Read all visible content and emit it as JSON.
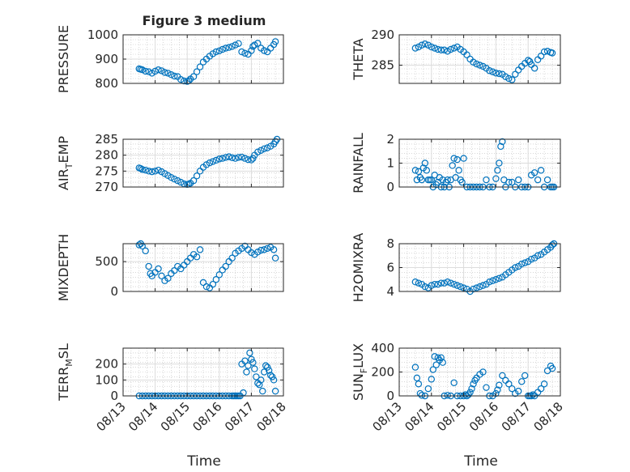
{
  "figure": {
    "title": "Figure 3 medium",
    "xlabel": "Time"
  },
  "style": {
    "marker_color": "#0072BD",
    "axis_color": "#262626",
    "grid_color": "#bfbfbf"
  },
  "chart_data": [
    {
      "type": "scatter",
      "name": "pressure",
      "ylabel": "PRESSURE",
      "xlim": [
        0,
        5
      ],
      "ylim": [
        800,
        1000
      ],
      "xticks": [
        0,
        1,
        2,
        3,
        4,
        5
      ],
      "yticks": [
        800,
        900,
        1000
      ],
      "ytick_labels": [
        "800",
        "900",
        "1000"
      ],
      "xtick_labels": [
        "08/13",
        "08/14",
        "08/15",
        "08/16",
        "08/17",
        "08/18"
      ],
      "x": [
        0.5,
        0.55,
        0.6,
        0.7,
        0.8,
        0.9,
        1.0,
        1.1,
        1.2,
        1.3,
        1.4,
        1.5,
        1.6,
        1.7,
        1.8,
        1.9,
        2.0,
        2.05,
        2.1,
        2.2,
        2.3,
        2.4,
        2.5,
        2.6,
        2.7,
        2.8,
        2.9,
        3.0,
        3.1,
        3.2,
        3.3,
        3.4,
        3.5,
        3.6,
        3.7,
        3.8,
        3.9,
        4.0,
        4.05,
        4.1,
        4.2,
        4.3,
        4.4,
        4.5,
        4.6,
        4.7,
        4.75
      ],
      "y": [
        860,
        858,
        856,
        850,
        848,
        842,
        850,
        856,
        852,
        845,
        842,
        836,
        830,
        828,
        816,
        810,
        808,
        811,
        818,
        828,
        848,
        868,
        888,
        900,
        912,
        922,
        930,
        934,
        940,
        945,
        948,
        952,
        958,
        964,
        930,
        924,
        920,
        935,
        952,
        958,
        965,
        945,
        935,
        930,
        945,
        960,
        972
      ]
    },
    {
      "type": "scatter",
      "name": "theta",
      "ylabel": "THETA",
      "xlim": [
        0,
        5
      ],
      "ylim": [
        282,
        290
      ],
      "xticks": [
        0,
        1,
        2,
        3,
        4,
        5
      ],
      "yticks": [
        285,
        290
      ],
      "ytick_labels": [
        "285",
        "290"
      ],
      "xtick_labels": [
        "08/13",
        "08/14",
        "08/15",
        "08/16",
        "08/17",
        "08/18"
      ],
      "x": [
        0.5,
        0.6,
        0.7,
        0.8,
        0.9,
        1.0,
        1.1,
        1.2,
        1.3,
        1.4,
        1.5,
        1.6,
        1.7,
        1.8,
        1.9,
        2.0,
        2.1,
        2.2,
        2.3,
        2.4,
        2.5,
        2.6,
        2.7,
        2.8,
        2.9,
        3.0,
        3.1,
        3.2,
        3.3,
        3.4,
        3.5,
        3.6,
        3.7,
        3.8,
        3.9,
        4.0,
        4.05,
        4.1,
        4.2,
        4.3,
        4.4,
        4.5,
        4.6,
        4.7,
        4.75
      ],
      "y": [
        287.8,
        288.0,
        288.3,
        288.5,
        288.3,
        288.0,
        287.8,
        287.6,
        287.5,
        287.5,
        287.3,
        287.6,
        287.8,
        288.0,
        287.6,
        287.2,
        286.7,
        286.0,
        285.5,
        285.2,
        285.0,
        284.8,
        284.5,
        284.1,
        283.9,
        283.7,
        283.6,
        283.5,
        283.1,
        282.8,
        282.6,
        283.5,
        284.2,
        284.8,
        285.3,
        285.8,
        285.6,
        285.1,
        284.5,
        285.9,
        286.5,
        287.2,
        287.3,
        287.1,
        287.0
      ]
    },
    {
      "type": "scatter",
      "name": "air-temp",
      "ylabel": "AIR_TEMP",
      "xlim": [
        0,
        5
      ],
      "ylim": [
        270,
        285
      ],
      "xticks": [
        0,
        1,
        2,
        3,
        4,
        5
      ],
      "yticks": [
        270,
        275,
        280,
        285
      ],
      "ytick_labels": [
        "270",
        "275",
        "280",
        "285"
      ],
      "xtick_labels": [
        "08/13",
        "08/14",
        "08/15",
        "08/16",
        "08/17",
        "08/18"
      ],
      "x": [
        0.5,
        0.55,
        0.6,
        0.7,
        0.8,
        0.9,
        1.0,
        1.1,
        1.2,
        1.3,
        1.4,
        1.5,
        1.6,
        1.7,
        1.8,
        1.9,
        2.0,
        2.05,
        2.1,
        2.2,
        2.3,
        2.4,
        2.5,
        2.6,
        2.7,
        2.8,
        2.9,
        3.0,
        3.1,
        3.2,
        3.3,
        3.4,
        3.5,
        3.6,
        3.7,
        3.8,
        3.9,
        4.0,
        4.05,
        4.1,
        4.2,
        4.3,
        4.4,
        4.5,
        4.6,
        4.7,
        4.75,
        4.8
      ],
      "y": [
        276.0,
        275.8,
        275.5,
        275.3,
        275.0,
        274.8,
        275.0,
        275.3,
        274.8,
        274.2,
        273.6,
        273.0,
        272.5,
        272.0,
        271.5,
        271.0,
        270.8,
        270.9,
        271.2,
        272.0,
        273.5,
        275.0,
        276.2,
        277.0,
        277.6,
        278.0,
        278.4,
        278.8,
        279.0,
        279.3,
        279.5,
        279.2,
        279.0,
        279.3,
        279.4,
        279.0,
        278.6,
        278.5,
        279.0,
        280.0,
        281.0,
        281.5,
        282.0,
        282.3,
        282.8,
        283.5,
        284.3,
        285.0
      ]
    },
    {
      "type": "scatter",
      "name": "rainfall",
      "ylabel": "RAINFALL",
      "xlim": [
        0,
        5
      ],
      "ylim": [
        0,
        2
      ],
      "xticks": [
        0,
        1,
        2,
        3,
        4,
        5
      ],
      "yticks": [
        0,
        1,
        2
      ],
      "ytick_labels": [
        "0",
        "1",
        "2"
      ],
      "xtick_labels": [
        "08/13",
        "08/14",
        "08/15",
        "08/16",
        "08/17",
        "08/18"
      ],
      "x": [
        0.5,
        0.55,
        0.6,
        0.65,
        0.7,
        0.75,
        0.8,
        0.85,
        0.9,
        0.95,
        1.0,
        1.05,
        1.1,
        1.15,
        1.2,
        1.25,
        1.3,
        1.35,
        1.4,
        1.45,
        1.5,
        1.55,
        1.6,
        1.65,
        1.7,
        1.75,
        1.8,
        1.85,
        1.9,
        1.95,
        2.0,
        2.1,
        2.2,
        2.3,
        2.4,
        2.5,
        2.6,
        2.7,
        2.8,
        2.9,
        3.0,
        3.05,
        3.1,
        3.15,
        3.2,
        3.25,
        3.3,
        3.4,
        3.5,
        3.6,
        3.7,
        3.8,
        3.9,
        4.0,
        4.1,
        4.2,
        4.3,
        4.4,
        4.5,
        4.6,
        4.7,
        4.75,
        4.8
      ],
      "y": [
        0.7,
        0.3,
        0.65,
        0.4,
        0.3,
        0.8,
        1.0,
        0.7,
        0.3,
        0.3,
        0.3,
        0.0,
        0.5,
        0.1,
        0.2,
        0.4,
        0.0,
        0.3,
        0.0,
        0.2,
        0.3,
        0.0,
        0.3,
        0.9,
        1.2,
        0.4,
        1.15,
        0.7,
        0.3,
        0.2,
        1.2,
        0.0,
        0.0,
        0.0,
        0.0,
        0.0,
        0.0,
        0.3,
        0.0,
        0.0,
        0.35,
        0.7,
        1.0,
        1.7,
        1.9,
        0.3,
        0.0,
        0.2,
        0.2,
        0.0,
        0.3,
        0.0,
        0.0,
        0.0,
        0.5,
        0.6,
        0.3,
        0.7,
        0.0,
        0.3,
        0.0,
        0.0,
        0.0
      ]
    },
    {
      "type": "scatter",
      "name": "mixdepth",
      "ylabel": "MIXDEPTH",
      "xlim": [
        0,
        5
      ],
      "ylim": [
        0,
        800
      ],
      "xticks": [
        0,
        1,
        2,
        3,
        4,
        5
      ],
      "yticks": [
        0,
        500
      ],
      "ytick_labels": [
        "0",
        "500"
      ],
      "xtick_labels": [
        "08/13",
        "08/14",
        "08/15",
        "08/16",
        "08/17",
        "08/18"
      ],
      "x": [
        0.5,
        0.55,
        0.6,
        0.7,
        0.8,
        0.85,
        0.9,
        1.0,
        1.1,
        1.2,
        1.3,
        1.4,
        1.5,
        1.6,
        1.7,
        1.8,
        1.9,
        2.0,
        2.1,
        2.2,
        2.3,
        2.4,
        2.5,
        2.6,
        2.7,
        2.8,
        2.9,
        3.0,
        3.1,
        3.2,
        3.3,
        3.4,
        3.5,
        3.6,
        3.7,
        3.8,
        3.9,
        4.0,
        4.1,
        4.2,
        4.3,
        4.4,
        4.5,
        4.6,
        4.7,
        4.75
      ],
      "y": [
        780,
        800,
        760,
        680,
        420,
        300,
        260,
        320,
        380,
        260,
        180,
        220,
        300,
        350,
        420,
        380,
        440,
        500,
        560,
        620,
        580,
        700,
        150,
        80,
        60,
        120,
        200,
        280,
        360,
        420,
        500,
        560,
        640,
        680,
        720,
        760,
        700,
        650,
        620,
        660,
        690,
        700,
        720,
        740,
        700,
        560
      ]
    },
    {
      "type": "scatter",
      "name": "h2omixra",
      "ylabel": "H2OMIXRA",
      "xlim": [
        0,
        5
      ],
      "ylim": [
        4,
        8
      ],
      "xticks": [
        0,
        1,
        2,
        3,
        4,
        5
      ],
      "yticks": [
        4,
        6,
        8
      ],
      "ytick_labels": [
        "4",
        "6",
        "8"
      ],
      "xtick_labels": [
        "08/13",
        "08/14",
        "08/15",
        "08/16",
        "08/17",
        "08/18"
      ],
      "x": [
        0.5,
        0.6,
        0.7,
        0.8,
        0.9,
        1.0,
        1.1,
        1.2,
        1.3,
        1.4,
        1.5,
        1.6,
        1.7,
        1.8,
        1.9,
        2.0,
        2.1,
        2.2,
        2.3,
        2.4,
        2.5,
        2.6,
        2.7,
        2.8,
        2.9,
        3.0,
        3.1,
        3.2,
        3.3,
        3.4,
        3.5,
        3.6,
        3.7,
        3.8,
        3.9,
        4.0,
        4.1,
        4.2,
        4.3,
        4.4,
        4.5,
        4.6,
        4.7,
        4.75,
        4.8
      ],
      "y": [
        4.8,
        4.7,
        4.6,
        4.4,
        4.3,
        4.5,
        4.6,
        4.6,
        4.7,
        4.7,
        4.8,
        4.7,
        4.6,
        4.5,
        4.4,
        4.3,
        4.2,
        4.0,
        4.2,
        4.3,
        4.4,
        4.5,
        4.6,
        4.8,
        4.9,
        5.0,
        5.1,
        5.2,
        5.4,
        5.6,
        5.8,
        6.0,
        6.1,
        6.3,
        6.4,
        6.5,
        6.7,
        6.8,
        7.0,
        7.1,
        7.3,
        7.5,
        7.7,
        7.9,
        8.0
      ]
    },
    {
      "type": "scatter",
      "name": "terr-msl",
      "ylabel": "TERR_MSL",
      "xlim": [
        0,
        5
      ],
      "ylim": [
        0,
        300
      ],
      "xticks": [
        0,
        1,
        2,
        3,
        4,
        5
      ],
      "yticks": [
        0,
        100,
        200
      ],
      "ytick_labels": [
        "0",
        "100",
        "200"
      ],
      "xtick_labels": [
        "08/13",
        "08/14",
        "08/15",
        "08/16",
        "08/17",
        "08/18"
      ],
      "x": [
        0.5,
        0.6,
        0.7,
        0.8,
        0.9,
        1.0,
        1.1,
        1.2,
        1.3,
        1.4,
        1.5,
        1.6,
        1.7,
        1.8,
        1.9,
        2.0,
        2.1,
        2.2,
        2.3,
        2.4,
        2.5,
        2.6,
        2.7,
        2.8,
        2.9,
        3.0,
        3.1,
        3.2,
        3.3,
        3.4,
        3.45,
        3.5,
        3.55,
        3.6,
        3.65,
        3.7,
        3.75,
        3.8,
        3.85,
        3.9,
        3.95,
        4.0,
        4.05,
        4.1,
        4.15,
        4.2,
        4.25,
        4.3,
        4.35,
        4.4,
        4.45,
        4.5,
        4.55,
        4.6,
        4.65,
        4.7,
        4.75
      ],
      "y": [
        0,
        0,
        0,
        0,
        0,
        0,
        0,
        0,
        0,
        0,
        0,
        0,
        0,
        0,
        0,
        0,
        0,
        0,
        0,
        0,
        0,
        0,
        0,
        0,
        0,
        0,
        0,
        0,
        0,
        0,
        0,
        0,
        0,
        0,
        0,
        200,
        20,
        220,
        150,
        190,
        270,
        230,
        210,
        170,
        120,
        80,
        70,
        100,
        30,
        150,
        190,
        180,
        160,
        130,
        120,
        100,
        30
      ]
    },
    {
      "type": "scatter",
      "name": "sun-flux",
      "ylabel": "SUN_FLUX",
      "xlim": [
        0,
        5
      ],
      "ylim": [
        0,
        400
      ],
      "xticks": [
        0,
        1,
        2,
        3,
        4,
        5
      ],
      "yticks": [
        0,
        200,
        400
      ],
      "ytick_labels": [
        "0",
        "200",
        "400"
      ],
      "xtick_labels": [
        "08/13",
        "08/14",
        "08/15",
        "08/16",
        "08/17",
        "08/18"
      ],
      "x": [
        0.5,
        0.55,
        0.6,
        0.65,
        0.7,
        0.8,
        0.9,
        1.0,
        1.05,
        1.1,
        1.15,
        1.2,
        1.25,
        1.3,
        1.35,
        1.4,
        1.5,
        1.6,
        1.7,
        1.8,
        1.9,
        2.0,
        2.05,
        2.1,
        2.15,
        2.2,
        2.25,
        2.3,
        2.35,
        2.4,
        2.5,
        2.6,
        2.7,
        2.8,
        2.9,
        3.0,
        3.05,
        3.1,
        3.2,
        3.3,
        3.4,
        3.5,
        3.6,
        3.7,
        3.8,
        3.9,
        4.0,
        4.05,
        4.1,
        4.15,
        4.2,
        4.3,
        4.4,
        4.5,
        4.6,
        4.7,
        4.75
      ],
      "y": [
        240,
        150,
        100,
        20,
        5,
        0,
        60,
        140,
        220,
        330,
        260,
        320,
        300,
        320,
        280,
        0,
        5,
        0,
        110,
        0,
        0,
        0,
        10,
        0,
        10,
        30,
        60,
        100,
        130,
        150,
        180,
        200,
        70,
        0,
        0,
        20,
        50,
        90,
        170,
        130,
        100,
        60,
        20,
        40,
        120,
        170,
        0,
        0,
        0,
        10,
        0,
        30,
        60,
        100,
        210,
        250,
        230
      ]
    }
  ]
}
